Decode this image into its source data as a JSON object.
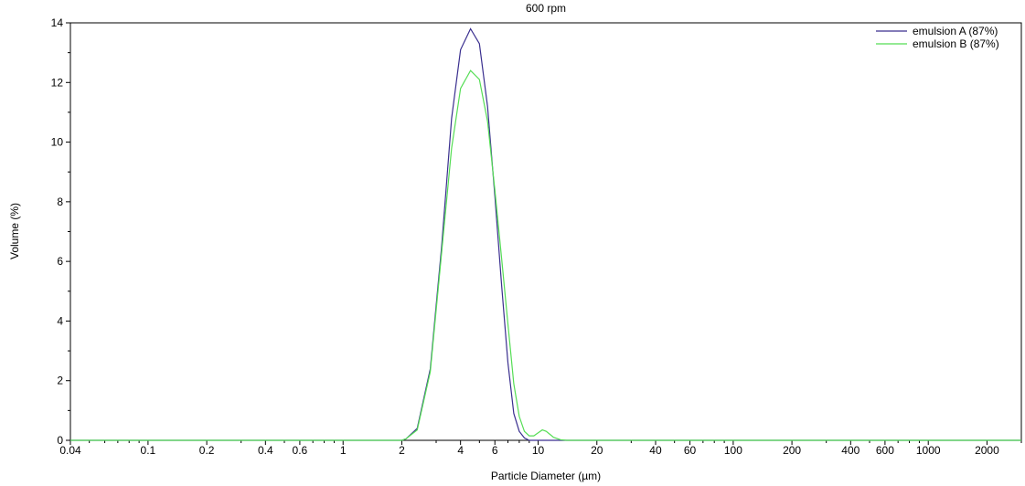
{
  "chart_data": {
    "type": "line",
    "title": "600 rpm",
    "xlabel": "Particle Diameter (µm)",
    "ylabel": "Volume (%)",
    "x_scale": "log",
    "xlim": [
      0.04,
      3000
    ],
    "ylim": [
      0,
      14
    ],
    "x_ticks": [
      0.04,
      0.1,
      0.2,
      0.4,
      0.6,
      1,
      2,
      4,
      6,
      10,
      20,
      40,
      60,
      100,
      200,
      400,
      600,
      1000,
      2000
    ],
    "x_tick_labels": [
      "0.04",
      "0.1",
      "0.2",
      "0.4",
      "0.6",
      "1",
      "2",
      "4",
      "6",
      "10",
      "20",
      "40",
      "60",
      "100",
      "200",
      "400",
      "600",
      "1000",
      "2000"
    ],
    "y_ticks": [
      0,
      2,
      4,
      6,
      8,
      10,
      12,
      14
    ],
    "grid": false,
    "legend_position": "top-right",
    "series": [
      {
        "name": "emulsion A (87%)",
        "color": "#3a2f8f",
        "x": [
          0.04,
          2.0,
          2.1,
          2.4,
          2.8,
          3.2,
          3.6,
          4.0,
          4.5,
          5.0,
          5.5,
          6.0,
          6.5,
          7.0,
          7.5,
          8.0,
          8.5,
          9.0,
          3000
        ],
        "y": [
          0,
          0,
          0.05,
          0.4,
          2.4,
          6.5,
          10.8,
          13.1,
          13.8,
          13.3,
          11.2,
          8.2,
          5.2,
          2.6,
          0.9,
          0.3,
          0.08,
          0,
          0
        ]
      },
      {
        "name": "emulsion B (87%)",
        "color": "#55dd55",
        "x": [
          0.04,
          2.0,
          2.1,
          2.4,
          2.8,
          3.2,
          3.6,
          4.0,
          4.5,
          5.0,
          5.5,
          6.0,
          6.5,
          7.0,
          7.5,
          8.0,
          8.5,
          9.0,
          9.5,
          10.0,
          10.5,
          11.0,
          11.5,
          12.0,
          13.0,
          14.0,
          3000
        ],
        "y": [
          0,
          0,
          0.05,
          0.35,
          2.3,
          6.3,
          9.8,
          11.8,
          12.4,
          12.1,
          10.7,
          8.4,
          6.1,
          3.9,
          1.9,
          0.8,
          0.3,
          0.15,
          0.15,
          0.25,
          0.35,
          0.3,
          0.2,
          0.1,
          0.02,
          0,
          0
        ]
      }
    ]
  }
}
